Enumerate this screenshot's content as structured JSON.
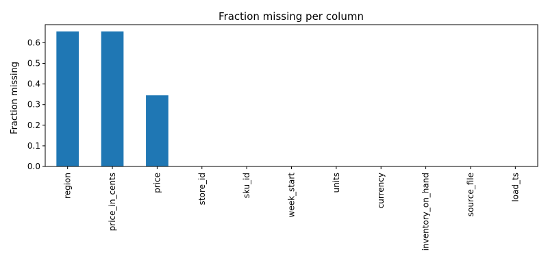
{
  "chart_data": {
    "type": "bar",
    "title": "Fraction missing per column",
    "xlabel": "",
    "ylabel": "Fraction missing",
    "categories": [
      "region",
      "price_in_cents",
      "price",
      "store_id",
      "sku_id",
      "week_start",
      "units",
      "currency",
      "inventory_on_hand",
      "source_file",
      "load_ts"
    ],
    "values": [
      0.655,
      0.655,
      0.345,
      0,
      0,
      0,
      0,
      0,
      0,
      0,
      0
    ],
    "ylim": [
      0,
      0.6878
    ],
    "yticks": [
      "0.0",
      "0.1",
      "0.2",
      "0.3",
      "0.4",
      "0.5",
      "0.6"
    ],
    "grid": false,
    "legend": "none",
    "bar_color": "#1f77b4"
  }
}
